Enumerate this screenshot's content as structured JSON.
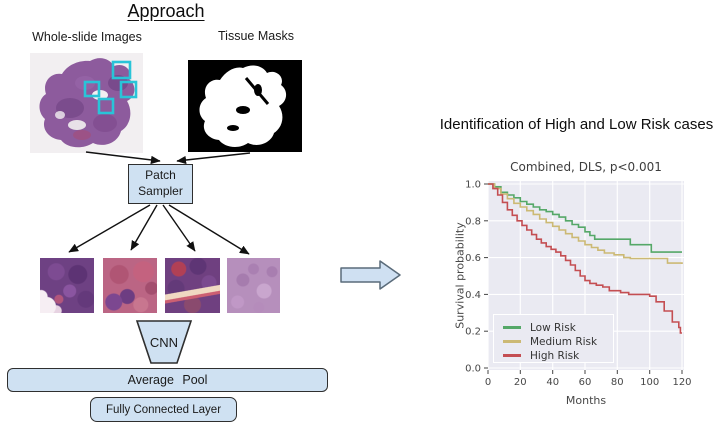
{
  "diagram": {
    "title": "Approach",
    "whole_slide_images_label": "Whole-slide Images",
    "tissue_masks_label": "Tissue Masks",
    "patch_sampler": {
      "line1": "Patch",
      "line2": "Sampler"
    },
    "cnn_label": "CNN",
    "average_pool_label": "Average Pool",
    "fully_connected_label": "Fully Connected Layer",
    "patch_marker_color": "#29c4d8",
    "node_fill_color": "#cfe1f2"
  },
  "right_panel": {
    "heading": "Identification of High and Low Risk cases"
  },
  "chart_data": {
    "type": "line",
    "subtype": "kaplan_meier_step",
    "title": "Combined, DLS, p<0.001",
    "xlabel": "Months",
    "ylabel": "Survival probability",
    "xlim": [
      0,
      120
    ],
    "ylim": [
      0.0,
      1.0
    ],
    "xticks": [
      0,
      20,
      40,
      60,
      80,
      100,
      120
    ],
    "yticks": [
      0.0,
      0.2,
      0.4,
      0.6,
      0.8,
      1.0
    ],
    "grid": true,
    "plot_background": "#eaeaf2",
    "grid_color": "#ffffff",
    "legend_position": "lower-left",
    "series": [
      {
        "name": "Low Risk",
        "color": "#55a868",
        "points": [
          [
            0,
            1.0
          ],
          [
            4,
            0.985
          ],
          [
            8,
            0.955
          ],
          [
            12,
            0.94
          ],
          [
            16,
            0.925
          ],
          [
            20,
            0.905
          ],
          [
            24,
            0.89
          ],
          [
            28,
            0.875
          ],
          [
            32,
            0.86
          ],
          [
            36,
            0.85
          ],
          [
            40,
            0.835
          ],
          [
            44,
            0.82
          ],
          [
            48,
            0.8
          ],
          [
            52,
            0.78
          ],
          [
            56,
            0.765
          ],
          [
            60,
            0.74
          ],
          [
            63,
            0.72
          ],
          [
            66,
            0.7
          ],
          [
            88,
            0.67
          ],
          [
            101,
            0.63
          ],
          [
            120,
            0.63
          ]
        ]
      },
      {
        "name": "Medium Risk",
        "color": "#ccb974",
        "points": [
          [
            0,
            1.0
          ],
          [
            4,
            0.975
          ],
          [
            8,
            0.945
          ],
          [
            12,
            0.92
          ],
          [
            16,
            0.895
          ],
          [
            20,
            0.875
          ],
          [
            24,
            0.855
          ],
          [
            28,
            0.835
          ],
          [
            32,
            0.81
          ],
          [
            36,
            0.79
          ],
          [
            40,
            0.77
          ],
          [
            44,
            0.75
          ],
          [
            48,
            0.73
          ],
          [
            52,
            0.71
          ],
          [
            56,
            0.69
          ],
          [
            60,
            0.67
          ],
          [
            64,
            0.655
          ],
          [
            68,
            0.64
          ],
          [
            72,
            0.625
          ],
          [
            78,
            0.615
          ],
          [
            84,
            0.6
          ],
          [
            88,
            0.595
          ],
          [
            111,
            0.57
          ],
          [
            120,
            0.565
          ]
        ]
      },
      {
        "name": "High Risk",
        "color": "#c44e52",
        "points": [
          [
            0,
            1.0
          ],
          [
            3,
            0.975
          ],
          [
            6,
            0.94
          ],
          [
            9,
            0.9
          ],
          [
            12,
            0.86
          ],
          [
            15,
            0.83
          ],
          [
            18,
            0.8
          ],
          [
            21,
            0.775
          ],
          [
            24,
            0.75
          ],
          [
            27,
            0.725
          ],
          [
            30,
            0.7
          ],
          [
            33,
            0.68
          ],
          [
            36,
            0.66
          ],
          [
            39,
            0.645
          ],
          [
            42,
            0.63
          ],
          [
            45,
            0.61
          ],
          [
            48,
            0.585
          ],
          [
            51,
            0.56
          ],
          [
            54,
            0.53
          ],
          [
            57,
            0.5
          ],
          [
            60,
            0.475
          ],
          [
            63,
            0.46
          ],
          [
            67,
            0.45
          ],
          [
            71,
            0.44
          ],
          [
            75,
            0.42
          ],
          [
            82,
            0.41
          ],
          [
            87,
            0.4
          ],
          [
            100,
            0.39
          ],
          [
            104,
            0.36
          ],
          [
            109,
            0.31
          ],
          [
            114,
            0.25
          ],
          [
            118,
            0.22
          ],
          [
            119,
            0.19
          ],
          [
            120,
            0.19
          ]
        ]
      }
    ]
  }
}
